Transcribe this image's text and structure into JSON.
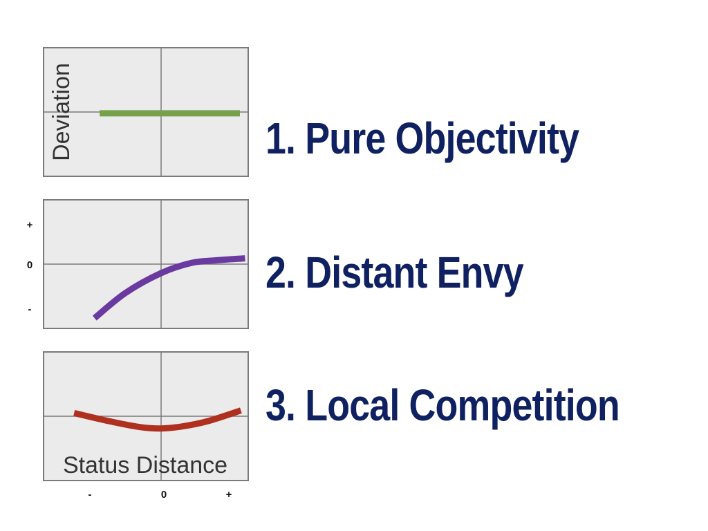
{
  "headings": [
    "1. Pure Objectivity",
    "2. Distant Envy",
    "3. Local Competition"
  ],
  "colors": {
    "heading": "#0f2160",
    "panel_bg": "#ebebeb",
    "panel_border": "#7a7a7a",
    "axis": "#7a7a7a"
  },
  "chart_data": [
    {
      "type": "line",
      "title": "",
      "xlabel": "",
      "ylabel": "Deviation",
      "xlim": [
        -1,
        1
      ],
      "ylim": [
        -1,
        1
      ],
      "grid": false,
      "series": [
        {
          "color": "#76a04a",
          "x": [
            -0.6,
            0.0,
            0.77
          ],
          "y": [
            -0.02,
            -0.02,
            -0.02
          ]
        }
      ]
    },
    {
      "type": "line",
      "title": "",
      "xlabel": "",
      "ylabel": "",
      "y_tick_labels": [
        "+",
        "0",
        "-"
      ],
      "xlim": [
        -1,
        1
      ],
      "ylim": [
        -1,
        1
      ],
      "grid": false,
      "series": [
        {
          "color": "#6a3aa0",
          "x": [
            -0.65,
            -0.35,
            0.0,
            0.3,
            0.55,
            0.82
          ],
          "y": [
            -0.84,
            -0.45,
            -0.14,
            0.02,
            0.06,
            0.09
          ]
        }
      ]
    },
    {
      "type": "line",
      "title": "",
      "xlabel": "Status Distance",
      "ylabel": "",
      "x_tick_labels": [
        "-",
        "0",
        "+"
      ],
      "xlim": [
        -1,
        1
      ],
      "ylim": [
        -1,
        1
      ],
      "grid": false,
      "series": [
        {
          "color": "#b0301f",
          "x": [
            -0.85,
            -0.5,
            -0.2,
            0.0,
            0.2,
            0.45,
            0.78
          ],
          "y": [
            0.05,
            -0.08,
            -0.17,
            -0.19,
            -0.16,
            -0.08,
            0.09
          ]
        }
      ]
    }
  ]
}
